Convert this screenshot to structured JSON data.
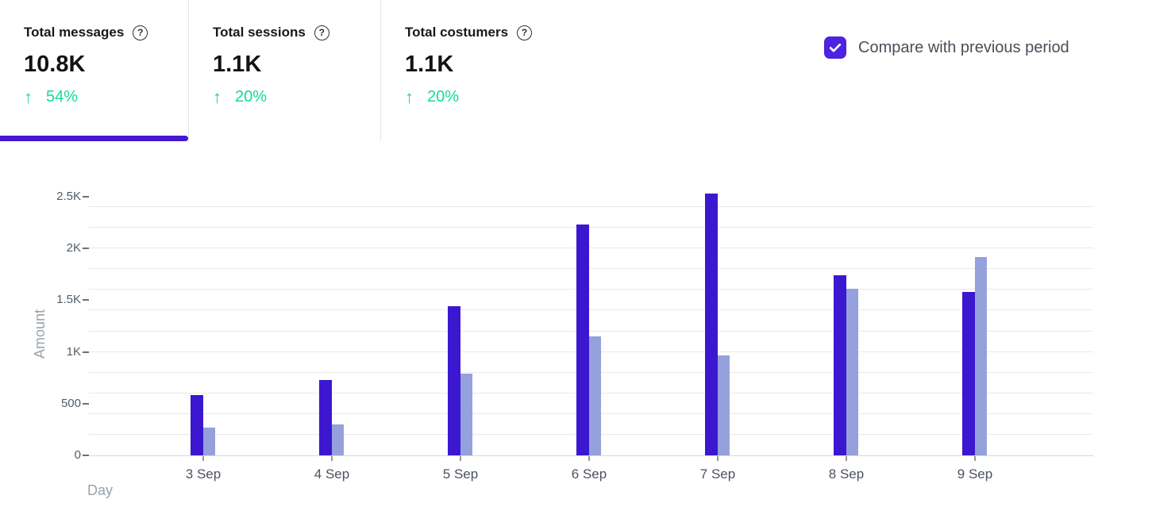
{
  "stats": {
    "cards": [
      {
        "label": "Total messages",
        "value": "10.8K",
        "delta": "54%",
        "trend": "up",
        "active": true
      },
      {
        "label": "Total sessions",
        "value": "1.1K",
        "delta": "20%",
        "trend": "up",
        "active": false
      },
      {
        "label": "Total costumers",
        "value": "1.1K",
        "delta": "20%",
        "trend": "up",
        "active": false
      }
    ]
  },
  "compare": {
    "label": "Compare with previous period",
    "checked": true
  },
  "icons": {
    "trend_up": "↑",
    "help": "?"
  },
  "colors": {
    "accent_purple": "#4417d2",
    "checkbox_purple": "#4e22e0",
    "positive_green": "#12dc92",
    "bar_current": "#3c17d0",
    "bar_previous": "#94a1dc"
  },
  "chart_data": {
    "type": "bar",
    "title": "",
    "xlabel": "Day",
    "ylabel": "Amount",
    "categories": [
      "3 Sep",
      "4 Sep",
      "5 Sep",
      "6 Sep",
      "7 Sep",
      "8 Sep",
      "9 Sep"
    ],
    "series": [
      {
        "name": "current-period",
        "color": "#3c17d0",
        "values": [
          580,
          730,
          1440,
          2230,
          2530,
          1740,
          1580
        ]
      },
      {
        "name": "previous-period",
        "color": "#94a1dc",
        "values": [
          270,
          300,
          790,
          1150,
          970,
          1610,
          1920
        ]
      }
    ],
    "ylim": [
      0,
      2500
    ],
    "yticks": [
      0,
      500,
      1000,
      1500,
      2000,
      2500
    ],
    "ytick_labels": [
      "0",
      "500",
      "1K",
      "1.5K",
      "2K",
      "2.5K"
    ],
    "grid": true,
    "grid_step": 200,
    "legend_position": "none"
  }
}
